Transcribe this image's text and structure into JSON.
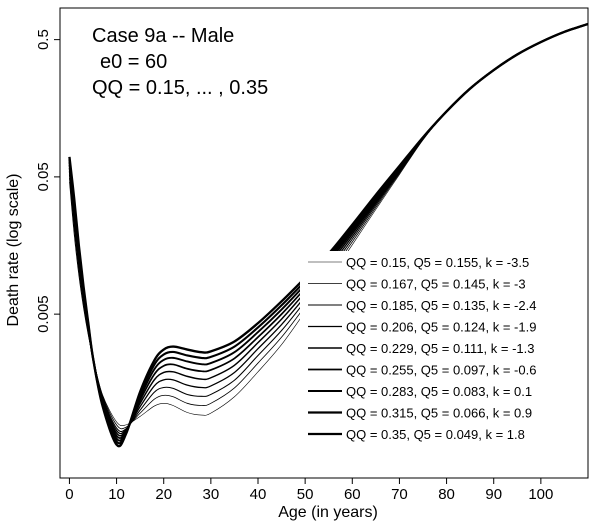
{
  "chart_data": {
    "type": "line",
    "annotations": [
      "Case 9a -- Male",
      "e0 = 60",
      "QQ = 0.15, ... , 0.35"
    ],
    "xlabel": "Age (in years)",
    "ylabel": "Death rate (log scale)",
    "xlim": [
      -2,
      110
    ],
    "ylim": [
      0.00032,
      0.85
    ],
    "yscale": "log",
    "x_ticks": [
      0,
      10,
      20,
      30,
      40,
      50,
      60,
      70,
      80,
      90,
      100
    ],
    "x_tick_labels": [
      "0",
      "10",
      "20",
      "30",
      "40",
      "50",
      "60",
      "70",
      "80",
      "90",
      "100"
    ],
    "y_ticks": [
      0.005,
      0.05,
      0.5
    ],
    "y_tick_labels": [
      "0.005",
      "0.05",
      "0.5"
    ],
    "grid": false,
    "legend_position": "right-middle",
    "legend": [
      "QQ = 0.15, Q5 = 0.155, k = -3.5",
      "QQ = 0.167, Q5 = 0.145, k = -3",
      "QQ = 0.185, Q5 = 0.135, k = -2.4",
      "QQ = 0.206, Q5 = 0.124, k = -1.9",
      "QQ = 0.229, Q5 = 0.111, k = -1.3",
      "QQ = 0.255, Q5 = 0.097, k = -0.6",
      "QQ = 0.283, Q5 = 0.083, k = 0.1",
      "QQ = 0.315, Q5 = 0.066, k = 0.9",
      "QQ = 0.35, Q5 = 0.049, k = 1.8"
    ],
    "x": [
      0,
      1,
      2,
      3,
      4,
      5,
      7,
      10,
      12,
      15,
      18,
      20,
      22,
      25,
      28,
      30,
      35,
      40,
      45,
      50,
      55,
      60,
      65,
      70,
      75,
      80,
      85,
      90,
      95,
      100,
      105,
      110
    ],
    "series": [
      {
        "values": [
          0.046,
          0.019,
          0.0095,
          0.0055,
          0.0035,
          0.0024,
          0.0013,
          0.00082,
          0.00078,
          0.0009,
          0.00107,
          0.00112,
          0.00108,
          0.00096,
          0.00092,
          0.00095,
          0.00125,
          0.0019,
          0.003,
          0.0052,
          0.009,
          0.016,
          0.029,
          0.052,
          0.093,
          0.15,
          0.22,
          0.3,
          0.39,
          0.48,
          0.57,
          0.65
        ]
      },
      {
        "values": [
          0.049,
          0.021,
          0.0102,
          0.0058,
          0.0036,
          0.0024,
          0.00128,
          0.00078,
          0.00075,
          0.00095,
          0.0012,
          0.00128,
          0.00125,
          0.00112,
          0.00108,
          0.00112,
          0.00145,
          0.0022,
          0.0034,
          0.0057,
          0.0096,
          0.0168,
          0.03,
          0.053,
          0.094,
          0.15,
          0.22,
          0.3,
          0.39,
          0.48,
          0.57,
          0.65
        ]
      },
      {
        "values": [
          0.052,
          0.023,
          0.011,
          0.0061,
          0.0037,
          0.0024,
          0.00125,
          0.00074,
          0.00073,
          0.001,
          0.00135,
          0.00146,
          0.00144,
          0.0013,
          0.00126,
          0.0013,
          0.00165,
          0.0025,
          0.0038,
          0.0062,
          0.0102,
          0.0176,
          0.031,
          0.054,
          0.094,
          0.15,
          0.22,
          0.3,
          0.39,
          0.48,
          0.57,
          0.65
        ]
      },
      {
        "values": [
          0.055,
          0.025,
          0.0118,
          0.0064,
          0.0038,
          0.0024,
          0.00122,
          0.00071,
          0.00072,
          0.00106,
          0.0015,
          0.00166,
          0.00166,
          0.00152,
          0.00146,
          0.0015,
          0.00188,
          0.0028,
          0.0042,
          0.0067,
          0.0108,
          0.0184,
          0.032,
          0.055,
          0.095,
          0.15,
          0.22,
          0.3,
          0.39,
          0.48,
          0.57,
          0.65
        ]
      },
      {
        "values": [
          0.058,
          0.027,
          0.0126,
          0.0067,
          0.0039,
          0.0024,
          0.00119,
          0.00068,
          0.00071,
          0.00112,
          0.00166,
          0.00188,
          0.0019,
          0.00176,
          0.00168,
          0.00172,
          0.00212,
          0.0031,
          0.0046,
          0.0072,
          0.0114,
          0.0192,
          0.033,
          0.056,
          0.095,
          0.15,
          0.22,
          0.3,
          0.39,
          0.48,
          0.57,
          0.65
        ]
      },
      {
        "values": [
          0.061,
          0.029,
          0.0134,
          0.007,
          0.004,
          0.0024,
          0.00116,
          0.00065,
          0.0007,
          0.00118,
          0.00182,
          0.0021,
          0.00215,
          0.002,
          0.00192,
          0.00196,
          0.00238,
          0.0034,
          0.005,
          0.0077,
          0.012,
          0.02,
          0.034,
          0.057,
          0.096,
          0.15,
          0.22,
          0.3,
          0.39,
          0.48,
          0.57,
          0.65
        ]
      },
      {
        "values": [
          0.064,
          0.031,
          0.0142,
          0.0073,
          0.0041,
          0.0024,
          0.00113,
          0.00062,
          0.00069,
          0.00124,
          0.00198,
          0.00232,
          0.0024,
          0.00226,
          0.00216,
          0.0022,
          0.00264,
          0.0037,
          0.0054,
          0.0082,
          0.0126,
          0.0208,
          0.035,
          0.058,
          0.096,
          0.15,
          0.22,
          0.3,
          0.39,
          0.48,
          0.57,
          0.65
        ]
      },
      {
        "values": [
          0.067,
          0.033,
          0.015,
          0.0076,
          0.0042,
          0.0024,
          0.0011,
          0.00059,
          0.00068,
          0.0013,
          0.00214,
          0.00254,
          0.00265,
          0.0025,
          0.0024,
          0.00244,
          0.0029,
          0.004,
          0.0058,
          0.0087,
          0.0132,
          0.0216,
          0.036,
          0.059,
          0.097,
          0.15,
          0.22,
          0.3,
          0.39,
          0.48,
          0.57,
          0.65
        ]
      },
      {
        "values": [
          0.07,
          0.035,
          0.0158,
          0.0079,
          0.0043,
          0.0024,
          0.00108,
          0.00056,
          0.00067,
          0.00136,
          0.0023,
          0.00276,
          0.0029,
          0.00276,
          0.00264,
          0.00268,
          0.00316,
          0.0043,
          0.0062,
          0.0092,
          0.0138,
          0.0224,
          0.037,
          0.06,
          0.097,
          0.15,
          0.22,
          0.3,
          0.39,
          0.48,
          0.57,
          0.65
        ]
      }
    ]
  }
}
